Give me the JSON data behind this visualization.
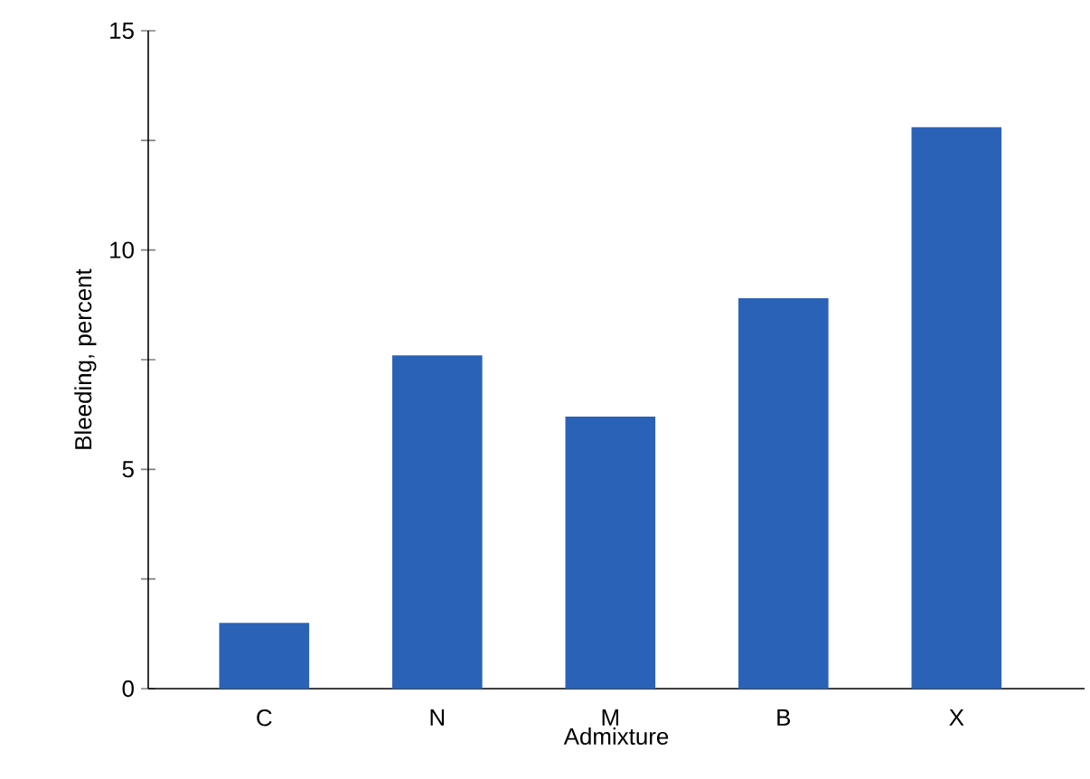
{
  "chart_data": {
    "type": "bar",
    "xlabel": "Admixture",
    "ylabel": "Bleeding, percent",
    "categories": [
      "C",
      "N",
      "M",
      "B",
      "X"
    ],
    "values": [
      1.5,
      7.6,
      6.2,
      8.9,
      12.8
    ],
    "color": "#2a62b8",
    "ylim": [
      0,
      15
    ],
    "yticks": [
      0,
      {
        "value": 2.5,
        "label": null
      },
      5,
      {
        "value": 7.5,
        "label": null
      },
      10,
      {
        "value": 12.5,
        "label": null
      },
      15
    ],
    "grid": false
  }
}
